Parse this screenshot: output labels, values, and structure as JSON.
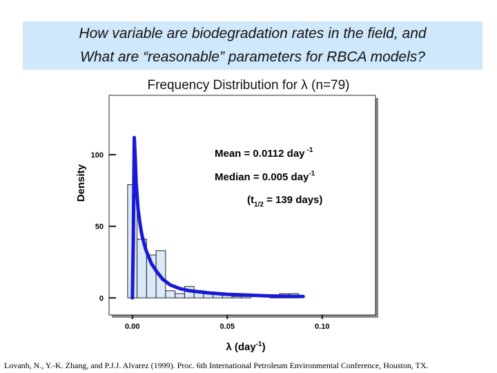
{
  "banner": {
    "line1": "How variable are biodegradation rates in the field, and",
    "line2": "What are “reasonable” parameters for RBCA  models?"
  },
  "chart_data": {
    "type": "bar",
    "title": "Frequency Distribution for λ (n=79)",
    "xlabel_base": "λ (day",
    "xlabel_sup": "-1",
    "xlabel_end": ")",
    "ylabel": "Density",
    "xlim": [
      -0.005,
      0.115
    ],
    "ylim": [
      -10,
      140
    ],
    "x_ticks": [
      0.0,
      0.05,
      0.1
    ],
    "x_tick_labels": [
      "0.00",
      "0.05",
      "0.10"
    ],
    "y_ticks": [
      0,
      50,
      100
    ],
    "y_tick_labels": [
      "0",
      "50",
      "100"
    ],
    "bin_width": 0.005,
    "bin_starts": [
      -0.0025,
      0.0025,
      0.0075,
      0.0125,
      0.0175,
      0.0225,
      0.0275,
      0.0325,
      0.0375,
      0.0425,
      0.0475,
      0.0525,
      0.0575,
      0.0625,
      0.0675,
      0.0725,
      0.0775,
      0.0825
    ],
    "densities": [
      79,
      41,
      30,
      33,
      5,
      3,
      8,
      5,
      3,
      3,
      3,
      1,
      1,
      0,
      0,
      1,
      3,
      3
    ],
    "fit_curve": {
      "x": [
        0.0,
        0.0005,
        0.001,
        0.0015,
        0.002,
        0.003,
        0.004,
        0.005,
        0.007,
        0.01,
        0.013,
        0.016,
        0.02,
        0.025,
        0.03,
        0.04,
        0.05,
        0.06,
        0.07,
        0.08,
        0.09
      ],
      "y": [
        0,
        40,
        112,
        98,
        80,
        62,
        52,
        44,
        34,
        24,
        18,
        13,
        9,
        6.5,
        5,
        3.5,
        2.5,
        2,
        1.5,
        1.2,
        1
      ]
    },
    "annotations": {
      "mean": {
        "text": "Mean = 0.0112 day",
        "sup": "-1"
      },
      "median": {
        "text": "Median = 0.005 day",
        "sup": "-1"
      },
      "half_life": {
        "pre": "(t",
        "sub": "1/2",
        "post": " = 139 days)"
      }
    },
    "colors": {
      "bar_fill": "#dce9f8",
      "bar_stroke": "#222222",
      "curve": "#1a1ad6"
    }
  },
  "citation": "Lovanh, N., Y.-K. Zhang, and P.J.J. Alvarez  (1999). Proc. 6th International Petroleum Environmental Conference, Houston, TX."
}
